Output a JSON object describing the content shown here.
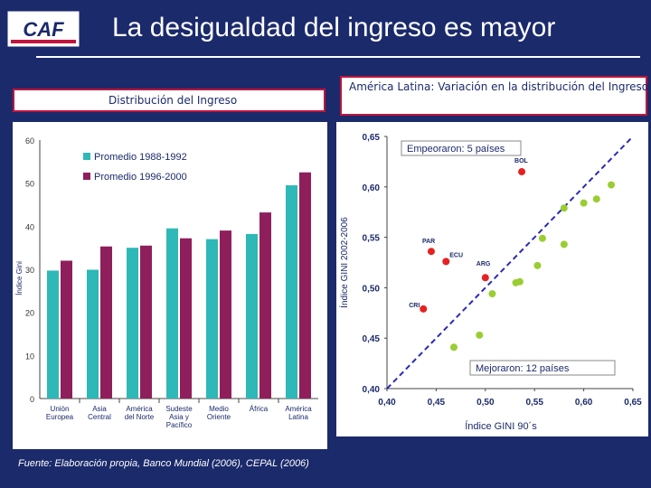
{
  "header": {
    "logo_text": "CAF",
    "title": "La desigualdad del ingreso es mayor"
  },
  "left_panel": {
    "label": "Distribución del Ingreso"
  },
  "right_panel": {
    "label": "América Latina: Variación en la distribución del Ingreso"
  },
  "footer": {
    "source": "Fuente: Elaboración propia, Banco Mundial (2006), CEPAL (2006)"
  },
  "colors": {
    "background": "#1b2a6b",
    "series1": "#2eb8b8",
    "series2": "#8e1f5c",
    "worsened": "#e82020",
    "improved": "#9acd32",
    "diagonal": "#2a2ab8",
    "accent_border": "#c0143c"
  },
  "chart_data": [
    {
      "type": "bar",
      "ylabel": "Índice Gini",
      "ylim": [
        0,
        60
      ],
      "yticks": [
        0,
        10,
        20,
        30,
        40,
        50,
        60
      ],
      "categories": [
        [
          "Unión",
          "Europea"
        ],
        [
          "Asia",
          "Central"
        ],
        [
          "América",
          "del Norte"
        ],
        [
          "Sudeste",
          "Asia y",
          "Pacífico"
        ],
        [
          "Medio",
          "Oriente"
        ],
        [
          "África"
        ],
        [
          "América",
          "Latina"
        ]
      ],
      "series": [
        {
          "name": "Promedio 1988-1992",
          "values": [
            29.7,
            29.9,
            35.0,
            39.5,
            37.0,
            38.2,
            49.5
          ]
        },
        {
          "name": "Promedio 1996-2000",
          "values": [
            32.0,
            35.3,
            35.5,
            37.2,
            39.0,
            43.2,
            52.5
          ]
        }
      ],
      "legend_position": "top-left"
    },
    {
      "type": "scatter",
      "xlabel": "Índice GINI 90´s",
      "ylabel": "Índice GINI 2002-2006",
      "xlim": [
        0.4,
        0.65
      ],
      "ylim": [
        0.4,
        0.65
      ],
      "xticks": [
        "0,40",
        "0,45",
        "0,50",
        "0,55",
        "0,60",
        "0,65"
      ],
      "xtick_values": [
        0.4,
        0.45,
        0.5,
        0.55,
        0.6,
        0.65
      ],
      "yticks": [
        "0,40",
        "0,45",
        "0,50",
        "0,55",
        "0,60",
        "0,65"
      ],
      "ytick_values": [
        0.4,
        0.45,
        0.5,
        0.55,
        0.6,
        0.65
      ],
      "annotations": {
        "worsened": "Empeoraron: 5 países",
        "improved": "Mejoraron: 12 países"
      },
      "worsened_points": [
        {
          "label": "BOL",
          "x": 0.537,
          "y": 0.615
        },
        {
          "label": "PAR",
          "x": 0.445,
          "y": 0.536
        },
        {
          "label": "ECU",
          "x": 0.46,
          "y": 0.526
        },
        {
          "label": "ARG",
          "x": 0.5,
          "y": 0.51
        },
        {
          "label": "CRI",
          "x": 0.437,
          "y": 0.479
        }
      ],
      "improved_points": [
        {
          "x": 0.468,
          "y": 0.441
        },
        {
          "x": 0.494,
          "y": 0.453
        },
        {
          "x": 0.507,
          "y": 0.494
        },
        {
          "x": 0.531,
          "y": 0.505
        },
        {
          "x": 0.535,
          "y": 0.506
        },
        {
          "x": 0.553,
          "y": 0.522
        },
        {
          "x": 0.558,
          "y": 0.549
        },
        {
          "x": 0.58,
          "y": 0.543
        },
        {
          "x": 0.58,
          "y": 0.579
        },
        {
          "x": 0.6,
          "y": 0.584
        },
        {
          "x": 0.613,
          "y": 0.588
        },
        {
          "x": 0.628,
          "y": 0.602
        }
      ]
    }
  ]
}
